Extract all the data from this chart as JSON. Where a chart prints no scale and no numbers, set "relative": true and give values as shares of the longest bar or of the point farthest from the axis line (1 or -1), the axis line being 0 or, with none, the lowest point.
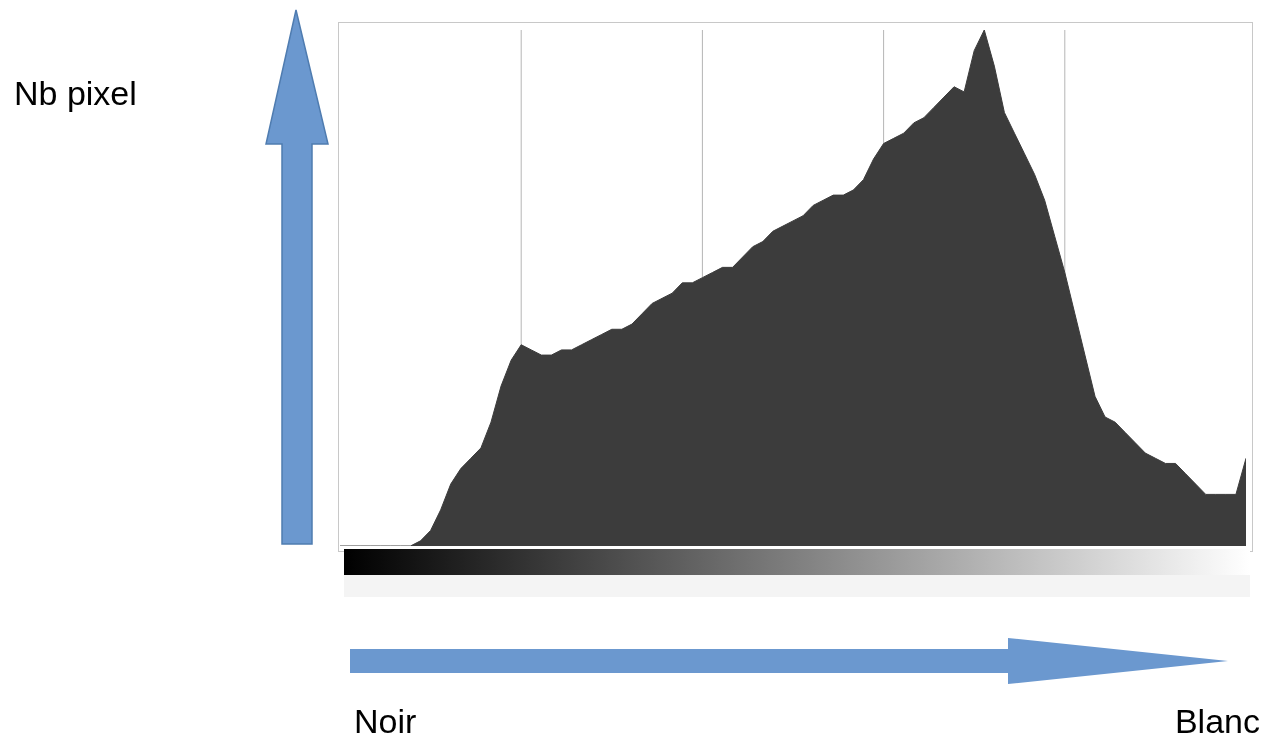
{
  "chart_data": {
    "type": "area",
    "relative": true,
    "annotations": [
      "Nb pixel",
      "Noir",
      "Blanc"
    ],
    "grid": "x",
    "color": "#3c3c3c",
    "categories": [
      null,
      null,
      null,
      null,
      null,
      null,
      null,
      null,
      null,
      null,
      null,
      null,
      null,
      null,
      null,
      null,
      null,
      null,
      null,
      null,
      null,
      null,
      null,
      null,
      null,
      null,
      null,
      null,
      null,
      null,
      null,
      null,
      null,
      null,
      null,
      null,
      null,
      null,
      null,
      null,
      null,
      null,
      null,
      null,
      null,
      null,
      null,
      null,
      null,
      null,
      null,
      null,
      null,
      null,
      null,
      null,
      null,
      null,
      null,
      null,
      null,
      null,
      null,
      null,
      null,
      null,
      null,
      null,
      null,
      null,
      null,
      null,
      null,
      null,
      null,
      null,
      null,
      null,
      null,
      null,
      null,
      null,
      null,
      null,
      null,
      null,
      null,
      null,
      null,
      null,
      null
    ],
    "values": [
      0,
      0,
      0,
      0,
      0,
      0,
      0,
      0,
      0.01,
      0.03,
      0.07,
      0.12,
      0.15,
      0.17,
      0.19,
      0.24,
      0.31,
      0.36,
      0.39,
      0.38,
      0.37,
      0.37,
      0.38,
      0.38,
      0.39,
      0.4,
      0.41,
      0.42,
      0.42,
      0.43,
      0.45,
      0.47,
      0.48,
      0.49,
      0.51,
      0.51,
      0.52,
      0.53,
      0.54,
      0.54,
      0.56,
      0.58,
      0.59,
      0.61,
      0.62,
      0.63,
      0.64,
      0.66,
      0.67,
      0.68,
      0.68,
      0.69,
      0.71,
      0.75,
      0.78,
      0.79,
      0.8,
      0.82,
      0.83,
      0.85,
      0.87,
      0.89,
      0.88,
      0.96,
      1,
      0.93,
      0.84,
      0.8,
      0.76,
      0.72,
      0.67,
      0.6,
      0.53,
      0.45,
      0.37,
      0.29,
      0.25,
      0.24,
      0.22,
      0.2,
      0.18,
      0.17,
      0.16,
      0.16,
      0.14,
      0.12,
      0.1,
      0.1,
      0.1,
      0.1,
      0.17
    ]
  }
}
